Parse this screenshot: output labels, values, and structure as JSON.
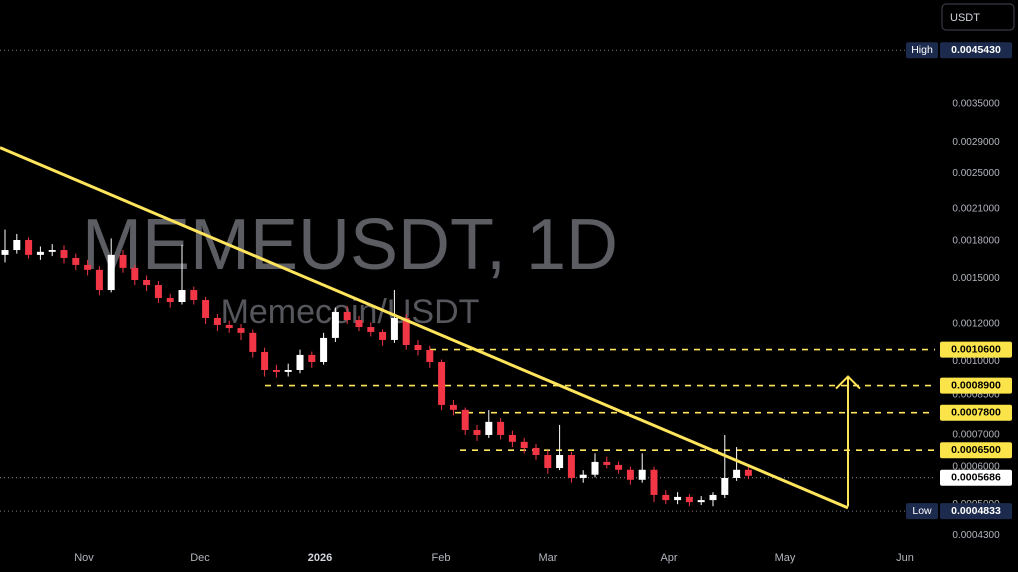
{
  "chart_data": {
    "type": "candlestick",
    "title": "MEMEUSDT, 1D",
    "subtitle": "Memecoin/USDT",
    "currency": "USDT",
    "log_scale": true,
    "up_color": "#ffffff",
    "down_color": "#f23645",
    "line_color": "#ffe55c",
    "ylim": [
      0.00041,
      0.0058
    ],
    "yticks": [
      {
        "value": 0.0035,
        "label": "0.0035000"
      },
      {
        "value": 0.0029,
        "label": "0.0029000"
      },
      {
        "value": 0.0025,
        "label": "0.0025000"
      },
      {
        "value": 0.0021,
        "label": "0.0021000"
      },
      {
        "value": 0.0018,
        "label": "0.0018000"
      },
      {
        "value": 0.0015,
        "label": "0.0015000"
      },
      {
        "value": 0.0012,
        "label": "0.0012000"
      },
      {
        "value": 0.001,
        "label": "0.0010000"
      },
      {
        "value": 0.00085,
        "label": "0.0008500"
      },
      {
        "value": 0.0007,
        "label": "0.0007000"
      },
      {
        "value": 0.0006,
        "label": "0.0006000"
      },
      {
        "value": 0.0005,
        "label": "0.0005000"
      },
      {
        "value": 0.00043,
        "label": "0.0004300"
      }
    ],
    "x_labels": [
      "Nov",
      "Dec",
      "2026",
      "Feb",
      "Mar",
      "Apr",
      "May",
      "Jun"
    ],
    "high": {
      "name": "High",
      "value": 0.004543,
      "label": "0.0045430"
    },
    "low": {
      "name": "Low",
      "value": 0.0004833,
      "label": "0.0004833"
    },
    "current": {
      "value": 0.0005686,
      "label": "0.0005686"
    },
    "levels": [
      {
        "value": 0.00106,
        "label": "0.0010600"
      },
      {
        "value": 0.00089,
        "label": "0.0008900"
      },
      {
        "value": 0.00078,
        "label": "0.0007800"
      },
      {
        "value": 0.00065,
        "label": "0.0006500"
      }
    ],
    "trendline": [
      0.00283,
      0.000491
    ],
    "arrow": [
      0.000495,
      0.00093
    ],
    "candles": [
      [
        0.00168,
        0.0019,
        0.00162,
        0.00172
      ],
      [
        0.00172,
        0.00186,
        0.00169,
        0.001806
      ],
      [
        0.001806,
        0.00183,
        0.00165,
        0.00168
      ],
      [
        0.00168,
        0.00175,
        0.00164,
        0.001705
      ],
      [
        0.001705,
        0.00177,
        0.00167,
        0.00172
      ],
      [
        0.00172,
        0.00176,
        0.00161,
        0.001655
      ],
      [
        0.001655,
        0.00169,
        0.00156,
        0.0016
      ],
      [
        0.0016,
        0.00164,
        0.00152,
        0.001562
      ],
      [
        0.001562,
        0.00159,
        0.00138,
        0.001416
      ],
      [
        0.001416,
        0.00182,
        0.0014,
        0.00168
      ],
      [
        0.00168,
        0.00172,
        0.00154,
        0.001577
      ],
      [
        0.001577,
        0.0016,
        0.00145,
        0.001487
      ],
      [
        0.001487,
        0.00152,
        0.00141,
        0.001451
      ],
      [
        0.001451,
        0.00148,
        0.00133,
        0.001362
      ],
      [
        0.001362,
        0.00139,
        0.0013,
        0.001336
      ],
      [
        0.001336,
        0.001765,
        0.00132,
        0.001416
      ],
      [
        0.001416,
        0.00144,
        0.00132,
        0.001349
      ],
      [
        0.001349,
        0.00137,
        0.0012,
        0.001236
      ],
      [
        0.001236,
        0.00126,
        0.00116,
        0.001195
      ],
      [
        0.001195,
        0.00122,
        0.00115,
        0.001177
      ],
      [
        0.001177,
        0.0012,
        0.00111,
        0.00115
      ],
      [
        0.00115,
        0.00117,
        0.00102,
        0.001048
      ],
      [
        0.001048,
        0.00107,
        0.00093,
        0.00096
      ],
      [
        0.00096,
        0.000985,
        0.000925,
        0.000951
      ],
      [
        0.000951,
        0.00099,
        0.00093,
        0.00096
      ],
      [
        0.00096,
        0.00106,
        0.000945,
        0.001033
      ],
      [
        0.001033,
        0.00105,
        0.00097,
        0.000998
      ],
      [
        0.000998,
        0.00115,
        0.000985,
        0.001122
      ],
      [
        0.001122,
        0.0013,
        0.0011,
        0.001273
      ],
      [
        0.001273,
        0.00131,
        0.0012,
        0.001224
      ],
      [
        0.001224,
        0.00125,
        0.00116,
        0.001183
      ],
      [
        0.001183,
        0.00121,
        0.00113,
        0.001155
      ],
      [
        0.001155,
        0.00117,
        0.00108,
        0.001111
      ],
      [
        0.001111,
        0.001416,
        0.001095,
        0.001236
      ],
      [
        0.001236,
        0.00126,
        0.00106,
        0.001084
      ],
      [
        0.001084,
        0.00111,
        0.00103,
        0.001058
      ],
      [
        0.001058,
        0.00108,
        0.00097,
        0.000998
      ],
      [
        0.000998,
        0.00101,
        0.00079,
        0.00081
      ],
      [
        0.00081,
        0.00083,
        0.00077,
        0.000791
      ],
      [
        0.000791,
        0.0008,
        0.0007,
        0.000717
      ],
      [
        0.000717,
        0.000735,
        0.00068,
        0.0007
      ],
      [
        0.0007,
        0.00079,
        0.00069,
        0.000746
      ],
      [
        0.000746,
        0.00076,
        0.000685,
        0.0007
      ],
      [
        0.0007,
        0.000715,
        0.00066,
        0.000677
      ],
      [
        0.000677,
        0.00069,
        0.00064,
        0.000657
      ],
      [
        0.000657,
        0.00067,
        0.00062,
        0.000635
      ],
      [
        0.000635,
        0.00065,
        0.00058,
        0.000596
      ],
      [
        0.000596,
        0.000735,
        0.00059,
        0.000635
      ],
      [
        0.000635,
        0.000645,
        0.000555,
        0.000568
      ],
      [
        0.000568,
        0.00059,
        0.000555,
        0.000577
      ],
      [
        0.000577,
        0.00064,
        0.00057,
        0.000614
      ],
      [
        0.000614,
        0.00063,
        0.000595,
        0.000605
      ],
      [
        0.000605,
        0.000615,
        0.00058,
        0.000591
      ],
      [
        0.000591,
        0.0006,
        0.00055,
        0.000563
      ],
      [
        0.000563,
        0.00064,
        0.000555,
        0.000591
      ],
      [
        0.000591,
        0.0006,
        0.000505,
        0.000523
      ],
      [
        0.000523,
        0.000535,
        0.0005,
        0.00051
      ],
      [
        0.00051,
        0.00053,
        0.0005,
        0.000518
      ],
      [
        0.000518,
        0.000525,
        0.000495,
        0.000505
      ],
      [
        0.000505,
        0.00052,
        0.000498,
        0.00051
      ],
      [
        0.00051,
        0.00053,
        0.000495,
        0.000523
      ],
      [
        0.000523,
        0.0007,
        0.000515,
        0.000568
      ],
      [
        0.000568,
        0.00066,
        0.00056,
        0.000591
      ],
      [
        0.000591,
        0.0006,
        0.000565,
        0.000574
      ]
    ]
  }
}
